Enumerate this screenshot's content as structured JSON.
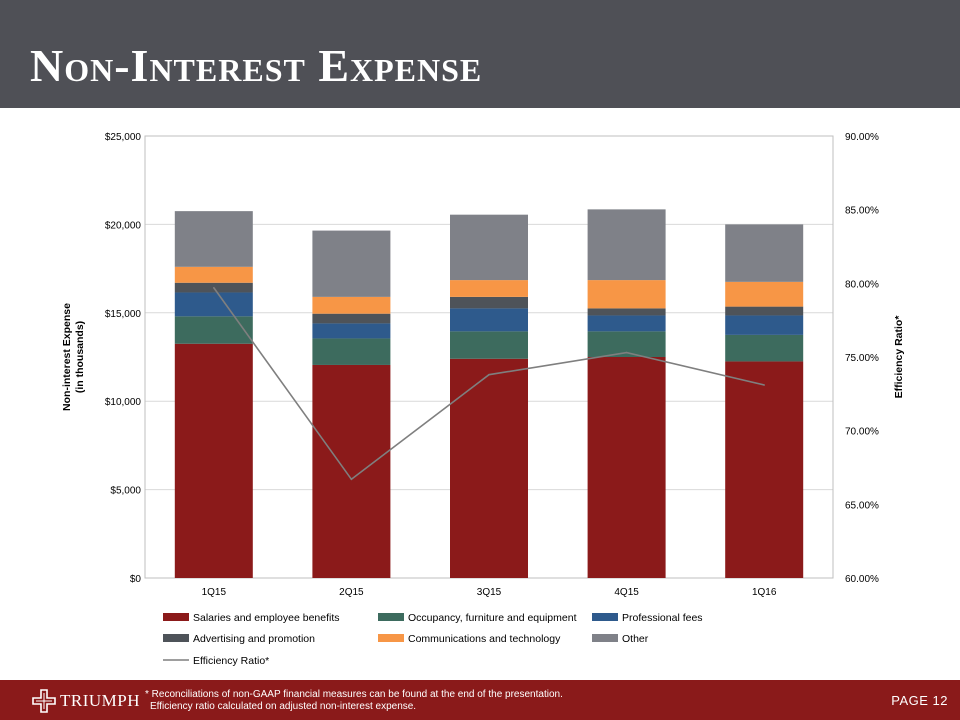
{
  "title": "Non-Interest Expense",
  "chart_data": {
    "type": "bar",
    "stacked": true,
    "categories": [
      "1Q15",
      "2Q15",
      "3Q15",
      "4Q15",
      "1Q16"
    ],
    "series": [
      {
        "name": "Salaries and employee benefits",
        "color": "#8b1a1a",
        "values": [
          13250,
          12050,
          12400,
          12500,
          12250
        ]
      },
      {
        "name": "Occupancy, furniture and equipment",
        "color": "#3d6b5e",
        "values": [
          1550,
          1500,
          1550,
          1450,
          1500
        ]
      },
      {
        "name": "Professional fees",
        "color": "#2e5a8c",
        "values": [
          1350,
          850,
          1300,
          900,
          1100
        ]
      },
      {
        "name": "Advertising and promotion",
        "color": "#4e5359",
        "values": [
          550,
          550,
          650,
          400,
          500
        ]
      },
      {
        "name": "Communications and technology",
        "color": "#f79646",
        "values": [
          900,
          950,
          950,
          1600,
          1400
        ]
      },
      {
        "name": "Other",
        "color": "#7f8188",
        "values": [
          3150,
          3750,
          3700,
          4000,
          3250
        ]
      }
    ],
    "line_series": {
      "name": "Efficiency Ratio*",
      "color": "#7f7f7f",
      "values": [
        79.7,
        66.7,
        73.8,
        75.3,
        73.1
      ]
    },
    "ylabel": "Non-interest Expense",
    "ylabel2": "(in thousands)",
    "y2label": "Efficiency Ratio*",
    "ylim": [
      0,
      25000
    ],
    "y2lim": [
      60,
      90
    ],
    "yticks": [
      "$0",
      "$5,000",
      "$10,000",
      "$15,000",
      "$20,000",
      "$25,000"
    ],
    "y2ticks": [
      "60.00%",
      "65.00%",
      "70.00%",
      "75.00%",
      "80.00%",
      "85.00%",
      "90.00%"
    ],
    "grid": true,
    "legend": "bottom"
  },
  "footer": {
    "brand": "TRIUMPH",
    "note_line1": "* Reconciliations of non-GAAP financial measures can be found at the end of the presentation.",
    "note_line2": "Efficiency ratio calculated on adjusted non-interest expense.",
    "page_label": "PAGE 12"
  }
}
